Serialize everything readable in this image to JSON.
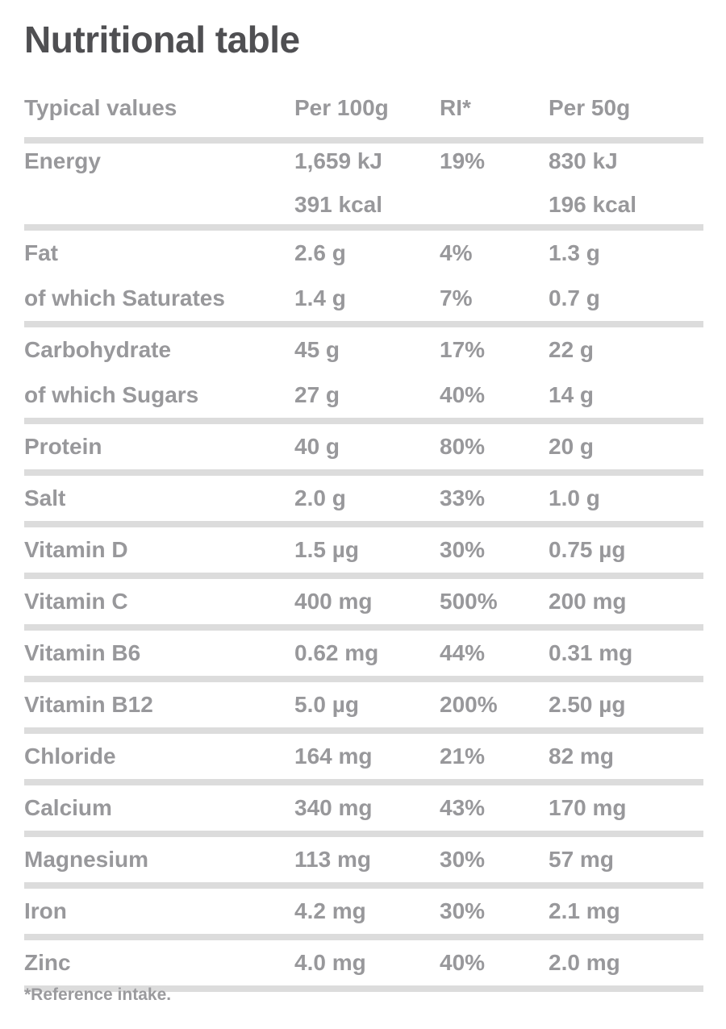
{
  "title": "Nutritional table",
  "footnote": "*Reference intake.",
  "colors": {
    "title_text": "#4f4f52",
    "body_text": "#98989b",
    "separator": "#dcdcdc",
    "background": "#ffffff"
  },
  "table": {
    "columns": {
      "label": "Typical values",
      "per100": "Per 100g",
      "ri": "RI*",
      "per50": "Per 50g"
    },
    "rows": [
      {
        "label": "Energy",
        "per100": "1,659 kJ",
        "per100_line2": "391 kcal",
        "ri": "19%",
        "per50": "830 kJ",
        "per50_line2": "196 kcal",
        "separator_after": true
      },
      {
        "label": "Fat",
        "per100": "2.6 g",
        "per100_line2": "",
        "ri": "4%",
        "per50": "1.3 g",
        "per50_line2": "",
        "separator_after": false
      },
      {
        "label": "of which Saturates",
        "per100": "1.4 g",
        "per100_line2": "",
        "ri": "7%",
        "per50": "0.7 g",
        "per50_line2": "",
        "separator_after": true
      },
      {
        "label": "Carbohydrate",
        "per100": "45 g",
        "per100_line2": "",
        "ri": "17%",
        "per50": "22 g",
        "per50_line2": "",
        "separator_after": false
      },
      {
        "label": "of which Sugars",
        "per100": "27 g",
        "per100_line2": "",
        "ri": "40%",
        "per50": "14 g",
        "per50_line2": "",
        "separator_after": true
      },
      {
        "label": "Protein",
        "per100": "40 g",
        "per100_line2": "",
        "ri": "80%",
        "per50": "20 g",
        "per50_line2": "",
        "separator_after": true
      },
      {
        "label": "Salt",
        "per100": "2.0 g",
        "per100_line2": "",
        "ri": "33%",
        "per50": "1.0 g",
        "per50_line2": "",
        "separator_after": true
      },
      {
        "label": "Vitamin D",
        "per100": "1.5 µg",
        "per100_line2": "",
        "ri": "30%",
        "per50": "0.75 µg",
        "per50_line2": "",
        "separator_after": true
      },
      {
        "label": "Vitamin C",
        "per100": "400 mg",
        "per100_line2": "",
        "ri": "500%",
        "per50": "200 mg",
        "per50_line2": "",
        "separator_after": true
      },
      {
        "label": "Vitamin B6",
        "per100": "0.62 mg",
        "per100_line2": "",
        "ri": "44%",
        "per50": "0.31 mg",
        "per50_line2": "",
        "separator_after": true
      },
      {
        "label": "Vitamin B12",
        "per100": "5.0 µg",
        "per100_line2": "",
        "ri": "200%",
        "per50": "2.50 µg",
        "per50_line2": "",
        "separator_after": true
      },
      {
        "label": "Chloride",
        "per100": "164 mg",
        "per100_line2": "",
        "ri": "21%",
        "per50": "82 mg",
        "per50_line2": "",
        "separator_after": true
      },
      {
        "label": "Calcium",
        "per100": "340 mg",
        "per100_line2": "",
        "ri": "43%",
        "per50": "170 mg",
        "per50_line2": "",
        "separator_after": true
      },
      {
        "label": "Magnesium",
        "per100": "113 mg",
        "per100_line2": "",
        "ri": "30%",
        "per50": "57 mg",
        "per50_line2": "",
        "separator_after": true
      },
      {
        "label": "Iron",
        "per100": "4.2 mg",
        "per100_line2": "",
        "ri": "30%",
        "per50": "2.1 mg",
        "per50_line2": "",
        "separator_after": true
      },
      {
        "label": "Zinc",
        "per100": "4.0 mg",
        "per100_line2": "",
        "ri": "40%",
        "per50": "2.0 mg",
        "per50_line2": "",
        "separator_after": true
      }
    ]
  }
}
